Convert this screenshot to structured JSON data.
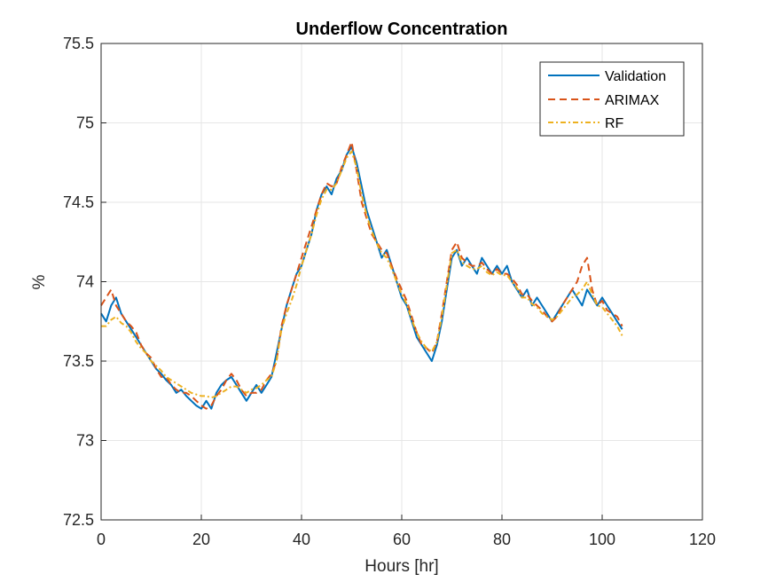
{
  "chart_data": {
    "type": "line",
    "title": "Underflow Concentration",
    "xlabel": "Hours [hr]",
    "ylabel": "%",
    "xlim": [
      0,
      120
    ],
    "ylim": [
      72.5,
      75.5
    ],
    "xticks": [
      0,
      20,
      40,
      60,
      80,
      100,
      120
    ],
    "yticks": [
      72.5,
      73,
      73.5,
      74,
      74.5,
      75,
      75.5
    ],
    "xtick_labels": [
      "0",
      "20",
      "40",
      "60",
      "80",
      "100",
      "120"
    ],
    "ytick_labels": [
      "72.5",
      "73",
      "73.5",
      "74",
      "74.5",
      "75",
      "75.5"
    ],
    "grid": true,
    "legend_position": "top-right",
    "series": [
      {
        "name": "Validation",
        "color": "#0072BD",
        "style": "solid",
        "x": [
          0,
          1,
          2,
          3,
          4,
          5,
          6,
          7,
          8,
          9,
          10,
          11,
          12,
          13,
          14,
          15,
          16,
          17,
          18,
          19,
          20,
          21,
          22,
          23,
          24,
          25,
          26,
          27,
          28,
          29,
          30,
          31,
          32,
          33,
          34,
          35,
          36,
          37,
          38,
          39,
          40,
          41,
          42,
          43,
          44,
          45,
          46,
          47,
          48,
          49,
          50,
          51,
          52,
          53,
          54,
          55,
          56,
          57,
          58,
          59,
          60,
          61,
          62,
          63,
          64,
          65,
          66,
          67,
          68,
          69,
          70,
          71,
          72,
          73,
          74,
          75,
          76,
          77,
          78,
          79,
          80,
          81,
          82,
          83,
          84,
          85,
          86,
          87,
          88,
          89,
          90,
          91,
          92,
          93,
          94,
          95,
          96,
          97,
          98,
          99,
          100,
          101,
          102,
          103,
          104
        ],
        "y": [
          73.8,
          73.75,
          73.85,
          73.9,
          73.8,
          73.75,
          73.7,
          73.65,
          73.6,
          73.55,
          73.5,
          73.45,
          73.42,
          73.38,
          73.35,
          73.3,
          73.32,
          73.28,
          73.25,
          73.22,
          73.2,
          73.25,
          73.2,
          73.3,
          73.35,
          73.38,
          73.4,
          73.35,
          73.3,
          73.25,
          73.3,
          73.35,
          73.3,
          73.35,
          73.4,
          73.55,
          73.7,
          73.85,
          73.95,
          74.05,
          74.1,
          74.2,
          74.3,
          74.45,
          74.55,
          74.6,
          74.55,
          74.65,
          74.7,
          74.8,
          74.85,
          74.75,
          74.6,
          74.45,
          74.35,
          74.25,
          74.15,
          74.2,
          74.1,
          74.0,
          73.9,
          73.85,
          73.75,
          73.65,
          73.6,
          73.55,
          73.5,
          73.6,
          73.75,
          73.95,
          74.15,
          74.2,
          74.1,
          74.15,
          74.1,
          74.05,
          74.15,
          74.1,
          74.05,
          74.1,
          74.05,
          74.1,
          74.0,
          73.95,
          73.9,
          73.95,
          73.85,
          73.9,
          73.85,
          73.8,
          73.75,
          73.8,
          73.85,
          73.9,
          73.95,
          73.9,
          73.85,
          73.95,
          73.9,
          73.85,
          73.9,
          73.85,
          73.8,
          73.75,
          73.7
        ]
      },
      {
        "name": "ARIMAX",
        "color": "#D95319",
        "style": "dashed",
        "x": [
          0,
          1,
          2,
          3,
          4,
          5,
          6,
          7,
          8,
          9,
          10,
          11,
          12,
          13,
          14,
          15,
          16,
          17,
          18,
          19,
          20,
          21,
          22,
          23,
          24,
          25,
          26,
          27,
          28,
          29,
          30,
          31,
          32,
          33,
          34,
          35,
          36,
          37,
          38,
          39,
          40,
          41,
          42,
          43,
          44,
          45,
          46,
          47,
          48,
          49,
          50,
          51,
          52,
          53,
          54,
          55,
          56,
          57,
          58,
          59,
          60,
          61,
          62,
          63,
          64,
          65,
          66,
          67,
          68,
          69,
          70,
          71,
          72,
          73,
          74,
          75,
          76,
          77,
          78,
          79,
          80,
          81,
          82,
          83,
          84,
          85,
          86,
          87,
          88,
          89,
          90,
          91,
          92,
          93,
          94,
          95,
          96,
          97,
          98,
          99,
          100,
          101,
          102,
          103,
          104
        ],
        "y": [
          73.85,
          73.9,
          73.95,
          73.85,
          73.8,
          73.75,
          73.72,
          73.68,
          73.6,
          73.55,
          73.52,
          73.45,
          73.4,
          73.4,
          73.35,
          73.32,
          73.3,
          73.3,
          73.28,
          73.25,
          73.22,
          73.2,
          73.22,
          73.28,
          73.32,
          73.38,
          73.42,
          73.38,
          73.32,
          73.28,
          73.3,
          73.3,
          73.32,
          73.38,
          73.42,
          73.5,
          73.72,
          73.85,
          73.95,
          74.05,
          74.15,
          74.25,
          74.35,
          74.45,
          74.55,
          74.62,
          74.6,
          74.62,
          74.72,
          74.8,
          74.88,
          74.7,
          74.5,
          74.4,
          74.3,
          74.25,
          74.2,
          74.18,
          74.1,
          74.02,
          73.95,
          73.88,
          73.78,
          73.68,
          73.6,
          73.58,
          73.55,
          73.62,
          73.8,
          74.0,
          74.2,
          74.25,
          74.15,
          74.12,
          74.1,
          74.1,
          74.12,
          74.08,
          74.05,
          74.08,
          74.05,
          74.05,
          74.02,
          73.98,
          73.92,
          73.92,
          73.88,
          73.85,
          73.82,
          73.78,
          73.75,
          73.78,
          73.85,
          73.9,
          73.95,
          74.0,
          74.1,
          74.15,
          73.95,
          73.85,
          73.88,
          73.82,
          73.8,
          73.78,
          73.72
        ]
      },
      {
        "name": "RF",
        "color": "#EDB120",
        "style": "dashdot",
        "x": [
          0,
          1,
          2,
          3,
          4,
          5,
          6,
          7,
          8,
          9,
          10,
          11,
          12,
          13,
          14,
          15,
          16,
          17,
          18,
          19,
          20,
          21,
          22,
          23,
          24,
          25,
          26,
          27,
          28,
          29,
          30,
          31,
          32,
          33,
          34,
          35,
          36,
          37,
          38,
          39,
          40,
          41,
          42,
          43,
          44,
          45,
          46,
          47,
          48,
          49,
          50,
          51,
          52,
          53,
          54,
          55,
          56,
          57,
          58,
          59,
          60,
          61,
          62,
          63,
          64,
          65,
          66,
          67,
          68,
          69,
          70,
          71,
          72,
          73,
          74,
          75,
          76,
          77,
          78,
          79,
          80,
          81,
          82,
          83,
          84,
          85,
          86,
          87,
          88,
          89,
          90,
          91,
          92,
          93,
          94,
          95,
          96,
          97,
          98,
          99,
          100,
          101,
          102,
          103,
          104
        ],
        "y": [
          73.72,
          73.72,
          73.76,
          73.78,
          73.74,
          73.72,
          73.68,
          73.62,
          73.58,
          73.55,
          73.5,
          73.47,
          73.44,
          73.4,
          73.38,
          73.36,
          73.34,
          73.32,
          73.3,
          73.29,
          73.28,
          73.28,
          73.27,
          73.28,
          73.3,
          73.32,
          73.34,
          73.34,
          73.32,
          73.3,
          73.32,
          73.33,
          73.35,
          73.38,
          73.4,
          73.5,
          73.7,
          73.8,
          73.88,
          73.98,
          74.1,
          74.2,
          74.3,
          74.42,
          74.52,
          74.58,
          74.58,
          74.62,
          74.7,
          74.78,
          74.82,
          74.72,
          74.55,
          74.42,
          74.32,
          74.24,
          74.18,
          74.15,
          74.08,
          74.0,
          73.92,
          73.86,
          73.76,
          73.68,
          73.62,
          73.58,
          73.56,
          73.62,
          73.78,
          73.98,
          74.18,
          74.2,
          74.12,
          74.1,
          74.08,
          74.08,
          74.1,
          74.06,
          74.04,
          74.06,
          74.04,
          74.04,
          74.0,
          73.96,
          73.9,
          73.9,
          73.86,
          73.84,
          73.8,
          73.78,
          73.76,
          73.78,
          73.82,
          73.86,
          73.9,
          73.92,
          73.95,
          74.0,
          73.92,
          73.85,
          73.84,
          73.8,
          73.76,
          73.72,
          73.66
        ]
      }
    ]
  }
}
